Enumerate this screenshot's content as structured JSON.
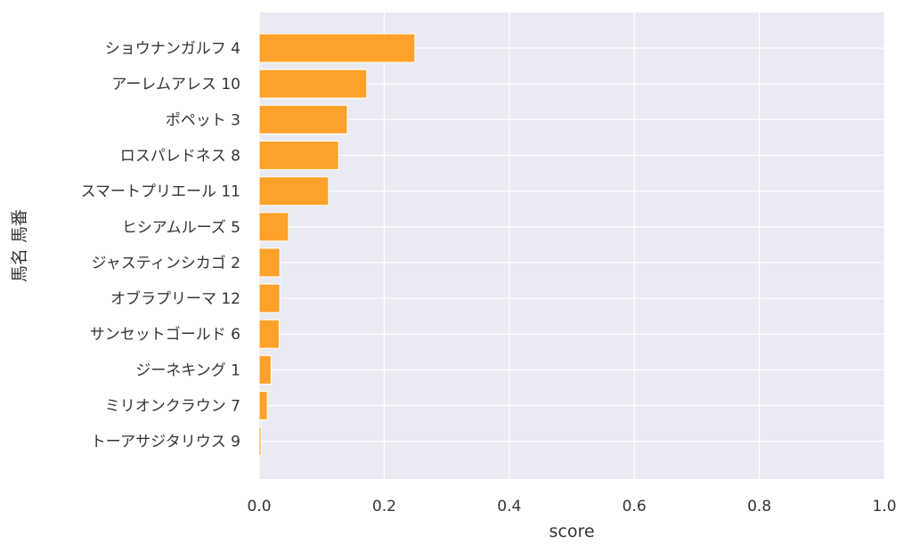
{
  "chart_data": {
    "type": "bar",
    "orientation": "horizontal",
    "xlabel": "score",
    "ylabel": "馬名 馬番",
    "xlim": [
      0,
      1.0
    ],
    "xticks": [
      "0.0",
      "0.2",
      "0.4",
      "0.6",
      "0.8",
      "1.0"
    ],
    "grid": true,
    "bar_color": "#FF9914",
    "plot_background": "#EAEAF2",
    "categories": [
      "ショウナンガルフ 4",
      "アーレムアレス 10",
      "ポペット 3",
      "ロスパレドネス 8",
      "スマートプリエール 11",
      "ヒシアムルーズ 5",
      "ジャスティンシカゴ 2",
      "オブラプリーマ 12",
      "サンセットゴールド 6",
      "ジーネキング 1",
      "ミリオンクラウン 7",
      "トーアサジタリウス 9"
    ],
    "values": [
      0.249,
      0.172,
      0.141,
      0.127,
      0.111,
      0.047,
      0.033,
      0.033,
      0.032,
      0.019,
      0.013,
      0.003
    ]
  }
}
